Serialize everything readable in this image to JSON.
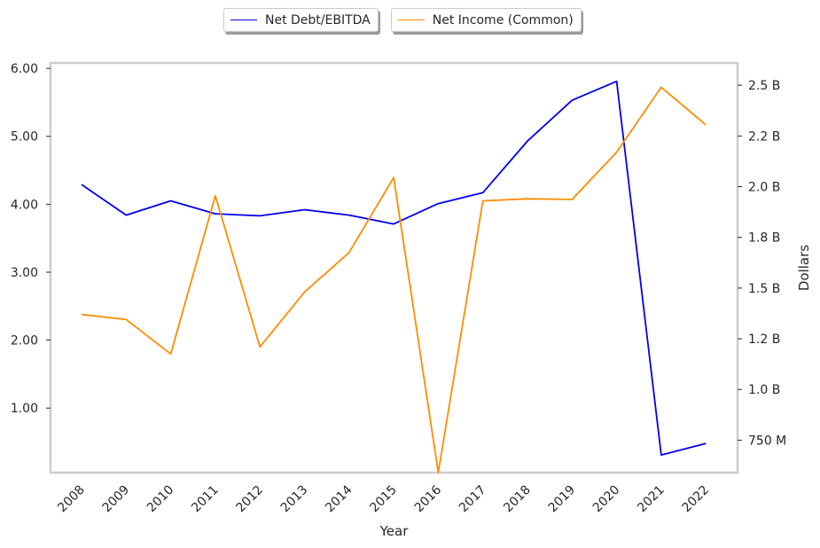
{
  "chart_data": {
    "type": "line",
    "title": "",
    "xlabel": "Year",
    "ylabel_left": "",
    "ylabel_right": "Dollars",
    "categories": [
      "2008",
      "2009",
      "2010",
      "2011",
      "2012",
      "2013",
      "2014",
      "2015",
      "2016",
      "2017",
      "2018",
      "2019",
      "2020",
      "2021",
      "2022"
    ],
    "series": [
      {
        "name": "Net Debt/EBITDA",
        "axis": "left",
        "color": "#0000ee",
        "values": [
          4.29,
          3.84,
          4.05,
          3.86,
          3.83,
          3.92,
          3.84,
          3.71,
          4.01,
          4.17,
          4.93,
          5.53,
          5.81,
          0.31,
          0.48
        ]
      },
      {
        "name": "Net Income (Common)",
        "axis": "right",
        "color": "#ff8c00",
        "values": [
          1370000000,
          1345000000,
          1175000000,
          1955000000,
          1210000000,
          1480000000,
          1675000000,
          2045000000,
          590000000,
          1930000000,
          1940000000,
          1937000000,
          2170000000,
          2490000000,
          2305000000
        ]
      }
    ],
    "ylim_left": [
      0.05,
      6.08
    ],
    "ylim_right": [
      590000000,
      2610000000
    ],
    "yticks_left": [
      {
        "value": 1,
        "label": "1.00"
      },
      {
        "value": 2,
        "label": "2.00"
      },
      {
        "value": 3,
        "label": "3.00"
      },
      {
        "value": 4,
        "label": "4.00"
      },
      {
        "value": 5,
        "label": "5.00"
      },
      {
        "value": 6,
        "label": "6.00"
      }
    ],
    "yticks_right": [
      {
        "value": 750000000,
        "label": "750 M"
      },
      {
        "value": 1000000000,
        "label": "1.0 B"
      },
      {
        "value": 1250000000,
        "label": "1.2 B"
      },
      {
        "value": 1500000000,
        "label": "1.5 B"
      },
      {
        "value": 1750000000,
        "label": "1.8 B"
      },
      {
        "value": 2000000000,
        "label": "2.0 B"
      },
      {
        "value": 2250000000,
        "label": "2.2 B"
      },
      {
        "value": 2500000000,
        "label": "2.5 B"
      }
    ],
    "grid": false,
    "legend_position": "top-center"
  }
}
